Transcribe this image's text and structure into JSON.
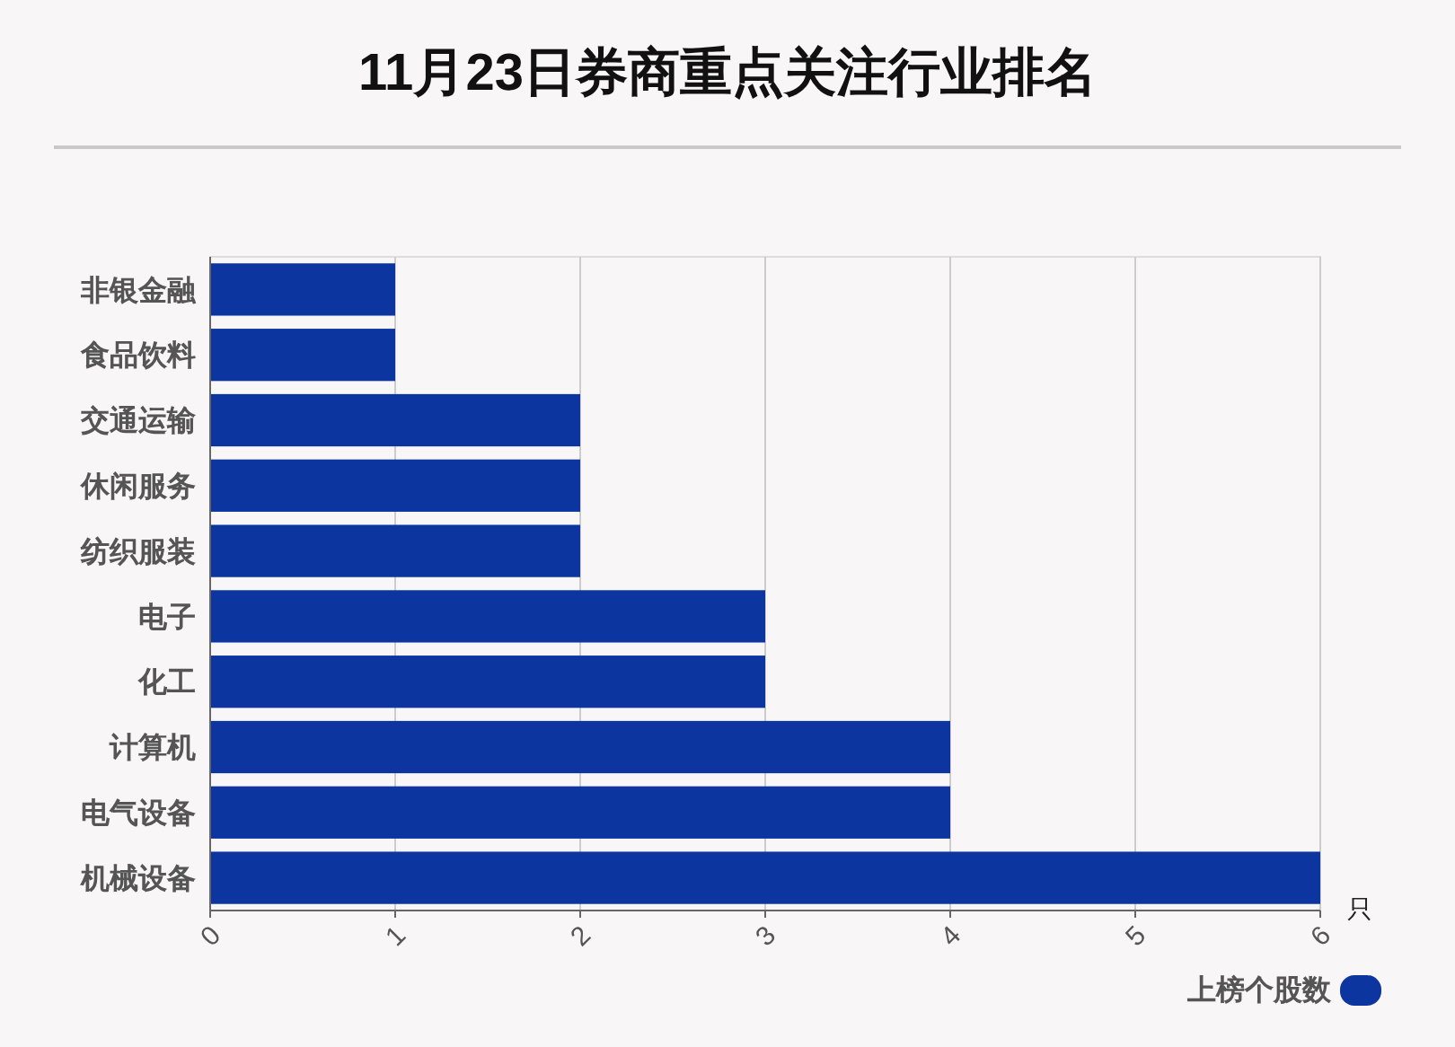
{
  "chart_data": {
    "type": "bar",
    "orientation": "horizontal",
    "title": "11月23日券商重点关注行业排名",
    "xlabel": "只",
    "categories": [
      "非银金融",
      "食品饮料",
      "交通运输",
      "休闲服务",
      "纺织服装",
      "电子",
      "化工",
      "计算机",
      "电气设备",
      "机械设备"
    ],
    "series": [
      {
        "name": "上榜个股数",
        "color": "#0c35a0",
        "values": [
          1,
          1,
          2,
          2,
          2,
          3,
          3,
          4,
          4,
          6
        ]
      }
    ],
    "xlim": [
      0,
      6
    ],
    "xticks": [
      0,
      1,
      2,
      3,
      4,
      5,
      6
    ],
    "grid": "x",
    "legend": "bottom right"
  }
}
